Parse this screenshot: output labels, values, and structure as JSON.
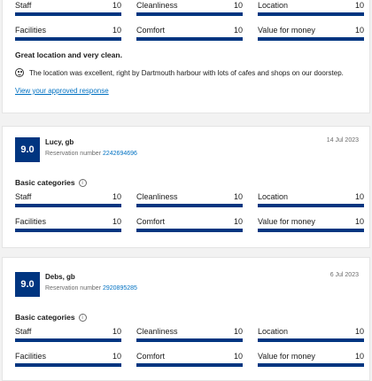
{
  "review_top": {
    "categories_row1": [
      {
        "label": "Staff",
        "value": "10",
        "fill": 1.0
      },
      {
        "label": "Cleanliness",
        "value": "10",
        "fill": 1.0
      },
      {
        "label": "Location",
        "value": "10",
        "fill": 1.0
      }
    ],
    "categories_row2": [
      {
        "label": "Facilities",
        "value": "10",
        "fill": 1.0
      },
      {
        "label": "Comfort",
        "value": "10",
        "fill": 1.0
      },
      {
        "label": "Value for money",
        "value": "10",
        "fill": 1.0
      }
    ],
    "title": "Great location and very clean.",
    "text": "The location was excellent, right by Dartmouth harbour with lots of cafes and shops on our doorstep.",
    "response_link": "View your approved response"
  },
  "reviews": [
    {
      "score": "9.0",
      "name": "Lucy, gb",
      "reservation_label": "Reservation number",
      "reservation_number": "2242694696",
      "date": "14 Jul 2023",
      "section": "Basic categories",
      "categories": [
        {
          "label": "Staff",
          "value": "10",
          "fill": 1.0
        },
        {
          "label": "Cleanliness",
          "value": "10",
          "fill": 1.0
        },
        {
          "label": "Location",
          "value": "10",
          "fill": 1.0
        },
        {
          "label": "Facilities",
          "value": "10",
          "fill": 1.0
        },
        {
          "label": "Comfort",
          "value": "10",
          "fill": 1.0
        },
        {
          "label": "Value for money",
          "value": "10",
          "fill": 1.0
        }
      ]
    },
    {
      "score": "9.0",
      "name": "Debs, gb",
      "reservation_label": "Reservation number",
      "reservation_number": "2920895285",
      "date": "6 Jul 2023",
      "section": "Basic categories",
      "categories": [
        {
          "label": "Staff",
          "value": "10",
          "fill": 1.0
        },
        {
          "label": "Cleanliness",
          "value": "10",
          "fill": 1.0
        },
        {
          "label": "Location",
          "value": "10",
          "fill": 1.0
        },
        {
          "label": "Facilities",
          "value": "10",
          "fill": 1.0
        },
        {
          "label": "Comfort",
          "value": "10",
          "fill": 1.0
        },
        {
          "label": "Value for money",
          "value": "10",
          "fill": 1.0
        }
      ]
    }
  ],
  "colors": {
    "brand": "#003580",
    "link": "#0071c2"
  },
  "icons": {
    "info": "info-icon",
    "smile": "smile-icon"
  }
}
